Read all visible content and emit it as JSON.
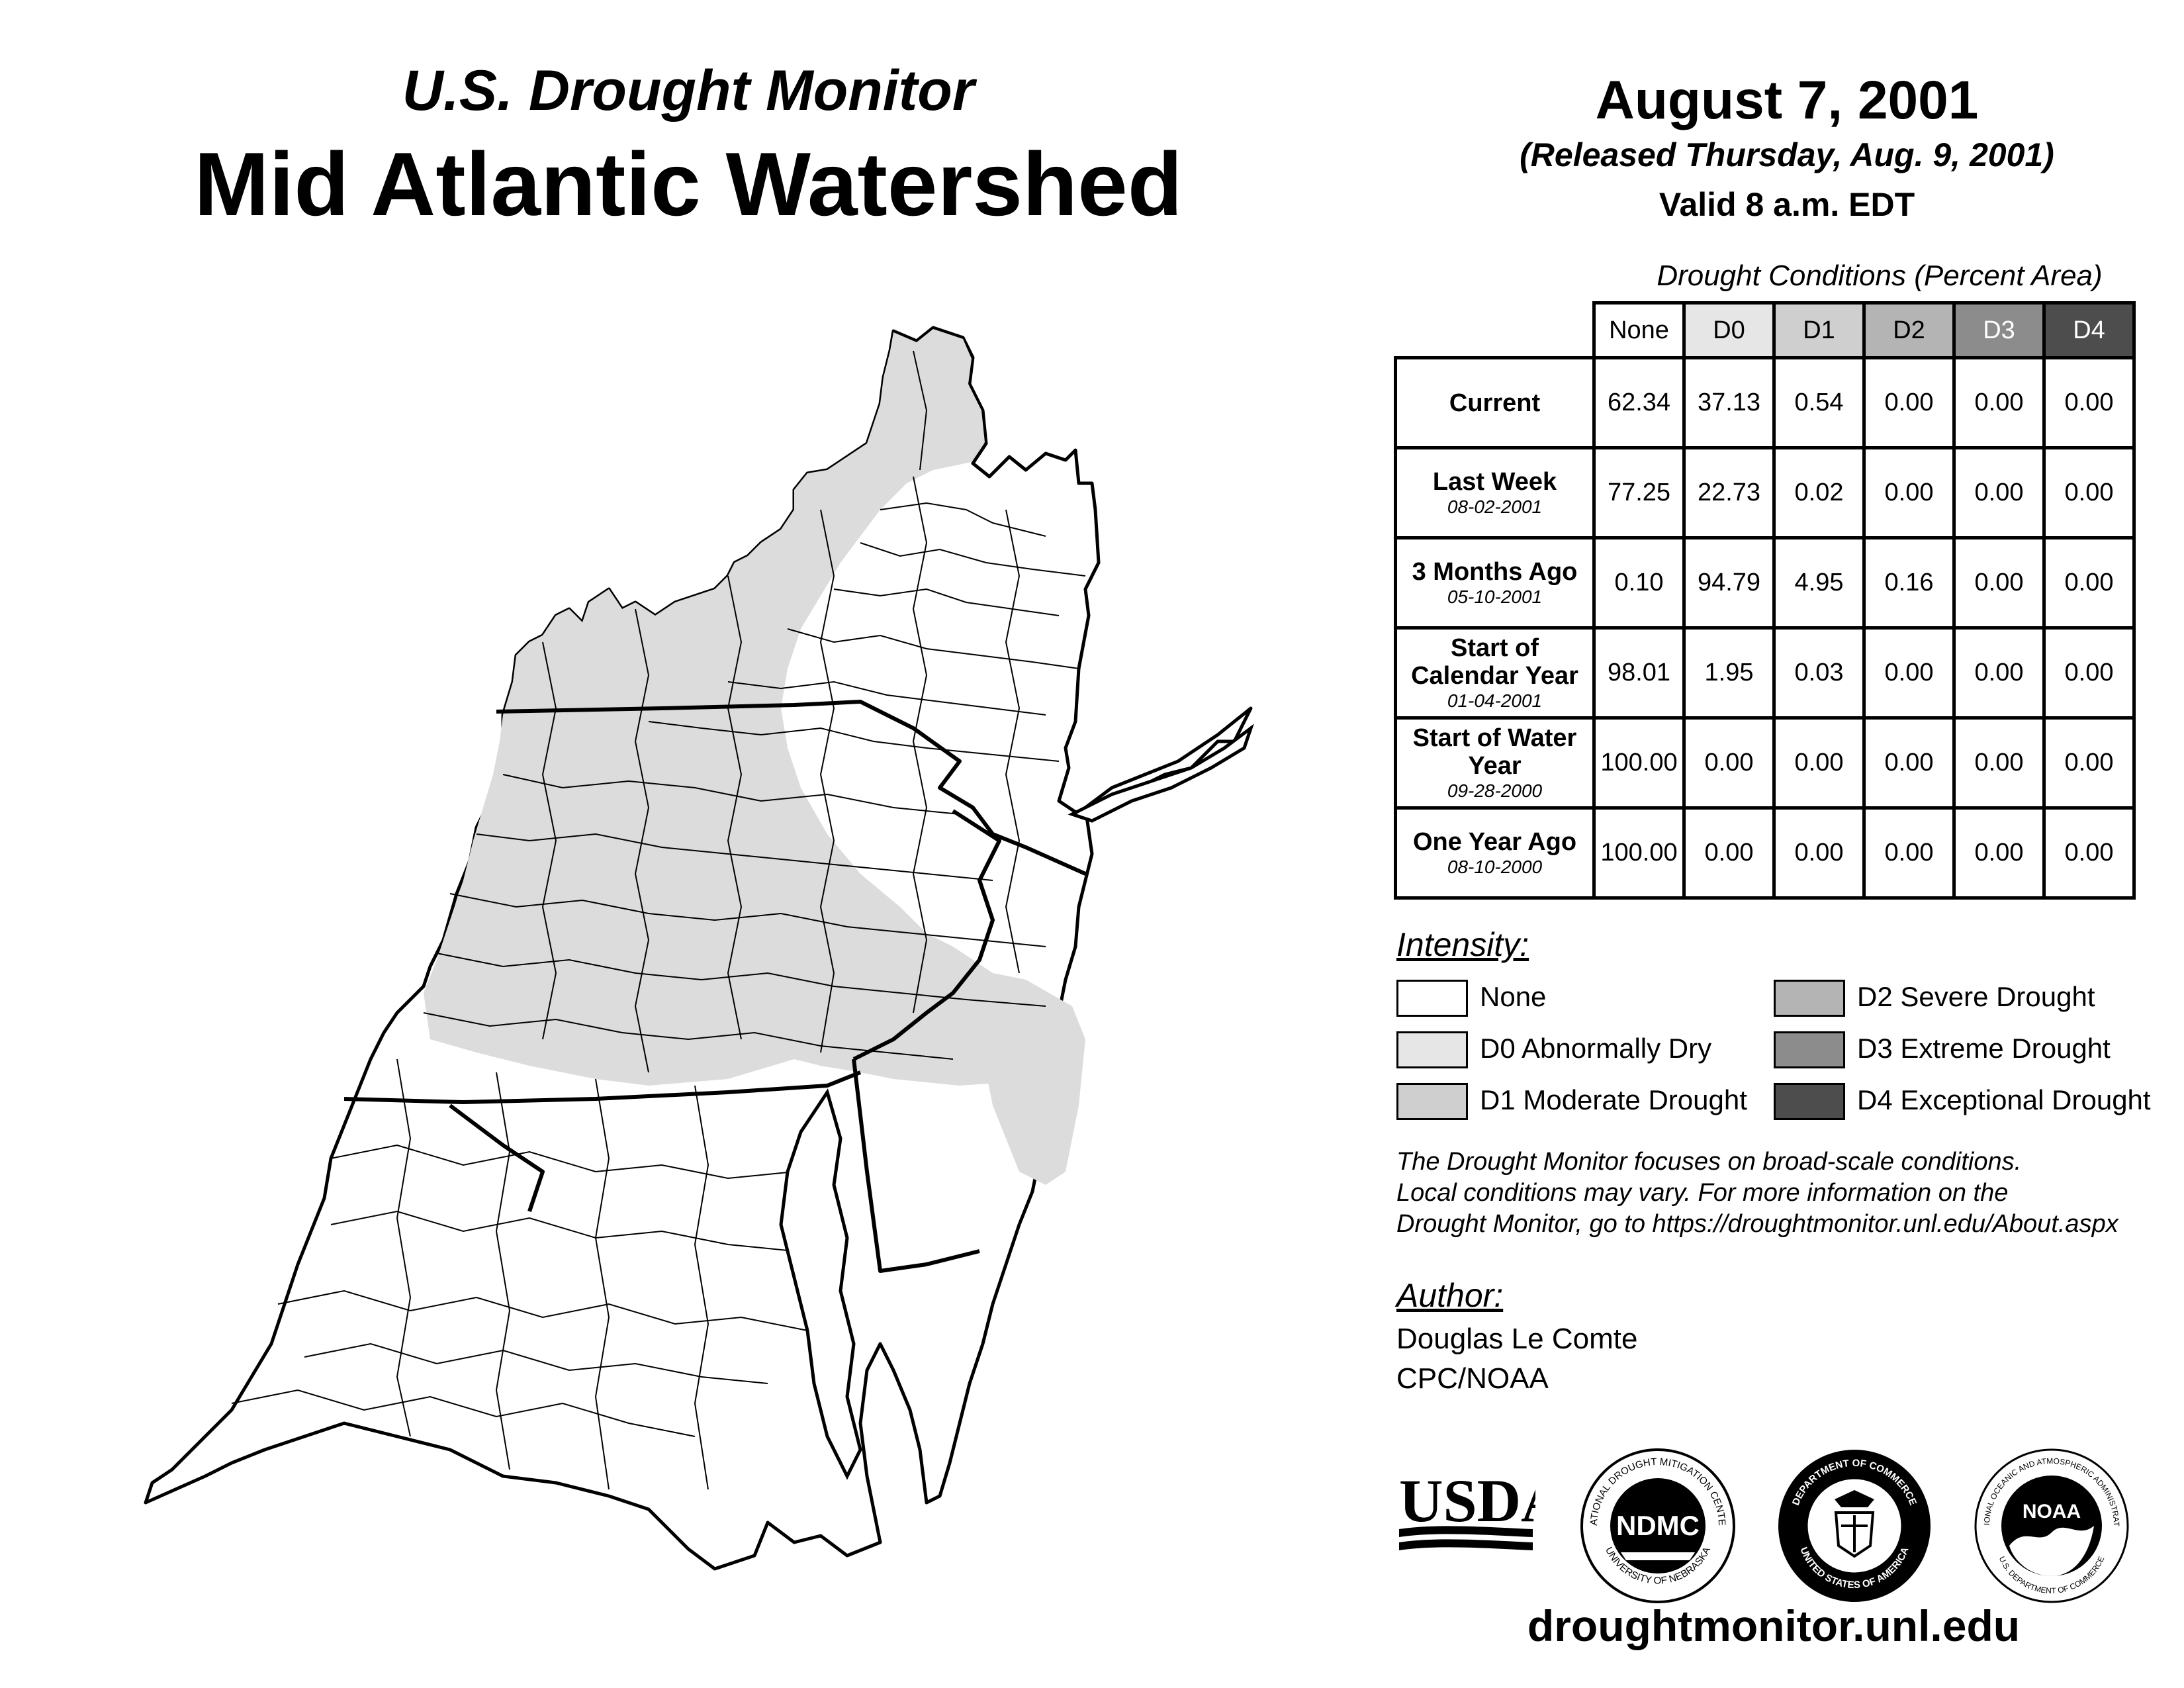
{
  "header": {
    "title_top": "U.S. Drought Monitor",
    "title_main": "Mid Atlantic Watershed",
    "date": "August 7, 2001",
    "released": "(Released Thursday, Aug. 9, 2001)",
    "valid": "Valid 8 a.m. EDT"
  },
  "table": {
    "caption": "Drought Conditions (Percent Area)",
    "columns": [
      "None",
      "D0",
      "D1",
      "D2",
      "D3",
      "D4"
    ],
    "column_colors": [
      "#ffffff",
      "#e6e6e6",
      "#cfcfcf",
      "#b4b4b4",
      "#8c8c8c",
      "#4d4d4d"
    ],
    "rows": [
      {
        "label": "Current",
        "sub": "",
        "values": [
          "62.34",
          "37.13",
          "0.54",
          "0.00",
          "0.00",
          "0.00"
        ]
      },
      {
        "label": "Last Week",
        "sub": "08-02-2001",
        "values": [
          "77.25",
          "22.73",
          "0.02",
          "0.00",
          "0.00",
          "0.00"
        ]
      },
      {
        "label": "3 Months Ago",
        "sub": "05-10-2001",
        "values": [
          "0.10",
          "94.79",
          "4.95",
          "0.16",
          "0.00",
          "0.00"
        ]
      },
      {
        "label": "Start of Calendar Year",
        "sub": "01-04-2001",
        "values": [
          "98.01",
          "1.95",
          "0.03",
          "0.00",
          "0.00",
          "0.00"
        ]
      },
      {
        "label": "Start of Water Year",
        "sub": "09-28-2000",
        "values": [
          "100.00",
          "0.00",
          "0.00",
          "0.00",
          "0.00",
          "0.00"
        ]
      },
      {
        "label": "One Year Ago",
        "sub": "08-10-2000",
        "values": [
          "100.00",
          "0.00",
          "0.00",
          "0.00",
          "0.00",
          "0.00"
        ]
      }
    ]
  },
  "legend": {
    "title": "Intensity:",
    "items": [
      {
        "label": "None",
        "color": "#ffffff"
      },
      {
        "label": "D0 Abnormally Dry",
        "color": "#e6e6e6"
      },
      {
        "label": "D1 Moderate Drought",
        "color": "#cfcfcf"
      },
      {
        "label": "D2 Severe Drought",
        "color": "#b4b4b4"
      },
      {
        "label": "D3 Extreme Drought",
        "color": "#8c8c8c"
      },
      {
        "label": "D4 Exceptional Drought",
        "color": "#4d4d4d"
      }
    ]
  },
  "note": {
    "line1": "The Drought Monitor focuses on broad-scale conditions.",
    "line2": "Local conditions may vary. For more information on the",
    "line3": "Drought Monitor, go to https://droughtmonitor.unl.edu/About.aspx"
  },
  "author": {
    "title": "Author:",
    "name": "Douglas Le Comte",
    "org": "CPC/NOAA"
  },
  "logos": {
    "usda": "USDA",
    "ndmc": "NDMC",
    "ndmc_ring_top": "NATIONAL DROUGHT MITIGATION CENTER",
    "ndmc_ring_bottom": "UNIVERSITY OF NEBRASKA",
    "doc_ring_top": "DEPARTMENT OF COMMERCE",
    "doc_ring_bottom": "UNITED STATES OF AMERICA",
    "noaa": "NOAA",
    "noaa_ring_top": "NATIONAL OCEANIC AND ATMOSPHERIC ADMINISTRATION",
    "noaa_ring_bottom": "U.S. DEPARTMENT OF COMMERCE"
  },
  "website": "droughtmonitor.unl.edu",
  "map": {
    "drought_color": "#d9d9d9",
    "none_color": "#ffffff"
  }
}
